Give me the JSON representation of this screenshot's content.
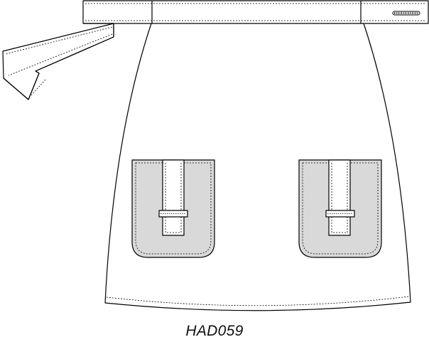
{
  "model_code": "HAD059",
  "colors": {
    "outline": "#000000",
    "pocket_fill": "#d9d9d9",
    "garment_fill": "#ffffff"
  }
}
